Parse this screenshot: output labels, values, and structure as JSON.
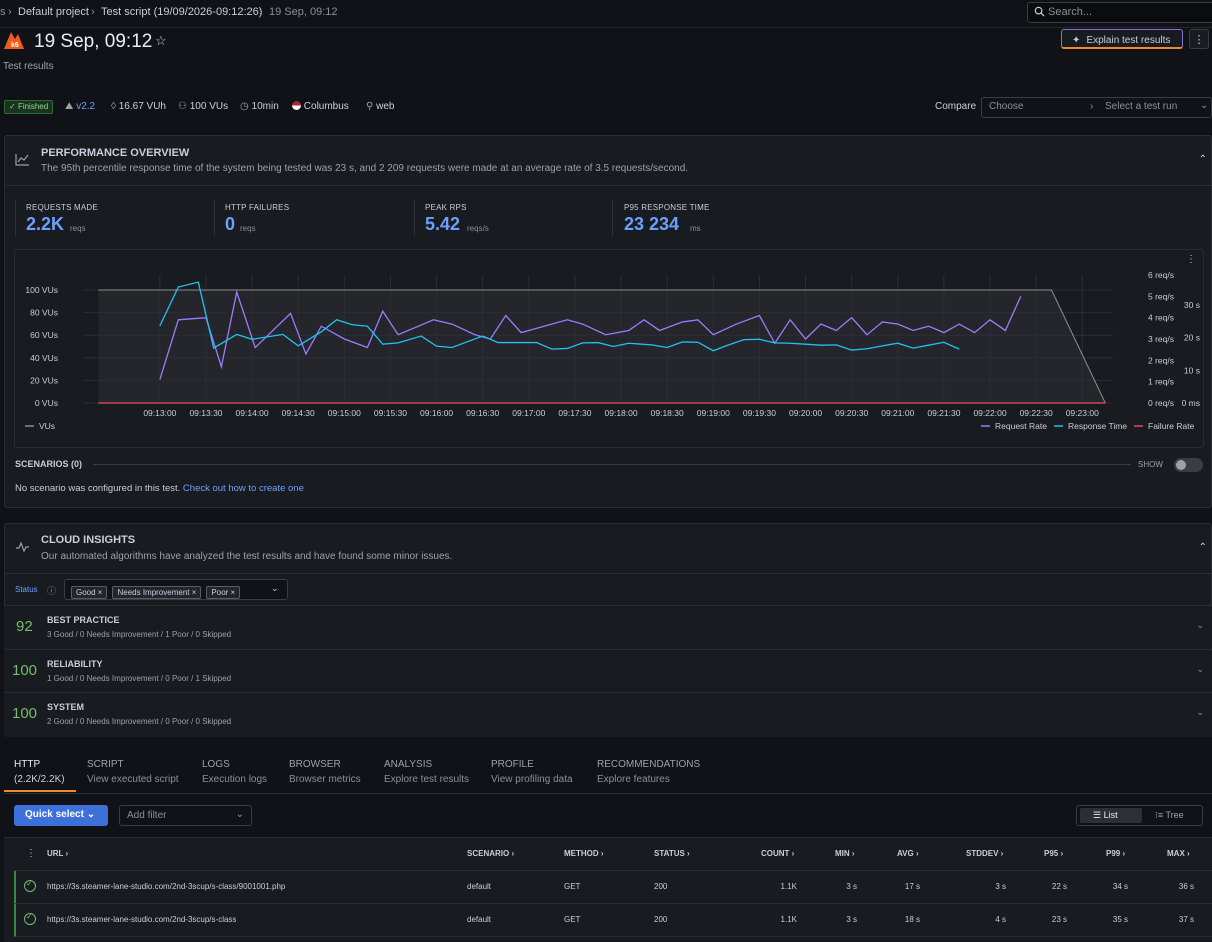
{
  "breadcrumb": {
    "first": "s",
    "project": "Default project",
    "script": "Test script (19/09/2026-09:12:26)",
    "run": "19 Sep, 09:12"
  },
  "search": {
    "placeholder": "Search..."
  },
  "header": {
    "title": "19 Sep, 09:12",
    "subtitle": "Test results",
    "explain_button": "Explain test results"
  },
  "meta": {
    "status": "Finished",
    "version": "v2.2",
    "vuh": "16.67 VUh",
    "vus": "100 VUs",
    "duration": "10min",
    "location": "Columbus",
    "source": "web"
  },
  "compare": {
    "label": "Compare",
    "choose_placeholder": "Choose",
    "run_placeholder": "Select a test run"
  },
  "performance": {
    "title": "PERFORMANCE OVERVIEW",
    "description": "The 95th percentile response time of the system being tested was 23 s, and 2 209 requests were made at an average rate of 3.5 requests/second.",
    "stats": [
      {
        "label": "REQUESTS MADE",
        "value": "2.2K",
        "unit": "reqs"
      },
      {
        "label": "HTTP FAILURES",
        "value": "0",
        "unit": "reqs"
      },
      {
        "label": "PEAK RPS",
        "value": "5.42",
        "unit": "reqs/s"
      },
      {
        "label": "P95 RESPONSE TIME",
        "value": "23 234",
        "unit": "ms"
      }
    ]
  },
  "chart_data": {
    "type": "line",
    "x": [
      "09:13:00",
      "09:13:30",
      "09:14:00",
      "09:14:30",
      "09:15:00",
      "09:15:30",
      "09:16:00",
      "09:16:30",
      "09:17:00",
      "09:17:30",
      "09:18:00",
      "09:18:30",
      "09:19:00",
      "09:19:30",
      "09:20:00",
      "09:20:30",
      "09:21:00",
      "09:21:30",
      "09:22:00",
      "09:22:30",
      "09:23:00"
    ],
    "y_left_ticks": [
      "100 VUs",
      "80 VUs",
      "60 VUs",
      "40 VUs",
      "20 VUs",
      "0 VUs"
    ],
    "y_rps_ticks": [
      "6 req/s",
      "5 req/s",
      "4 req/s",
      "3 req/s",
      "2 req/s",
      "1 req/s",
      "0 req/s"
    ],
    "y_rt_ticks": [
      "30 s",
      "20 s",
      "10 s",
      "0 ms"
    ],
    "xlim_seconds": [
      -50,
      620
    ],
    "series": [
      {
        "name": "VUs",
        "color": "#8e8e8e",
        "points": [
          [
            -40,
            100
          ],
          [
            580,
            100
          ],
          [
            615,
            0
          ]
        ]
      },
      {
        "name": "Request Rate",
        "color": "#9d7bfa",
        "axis": "rps",
        "points": [
          [
            0,
            1.1
          ],
          [
            12,
            3.9
          ],
          [
            30,
            4.0
          ],
          [
            40,
            1.7
          ],
          [
            50,
            5.2
          ],
          [
            62,
            2.6
          ],
          [
            85,
            4.2
          ],
          [
            95,
            2.3
          ],
          [
            105,
            3.6
          ],
          [
            120,
            3.0
          ],
          [
            135,
            2.6
          ],
          [
            145,
            4.3
          ],
          [
            155,
            3.2
          ],
          [
            178,
            3.9
          ],
          [
            190,
            3.7
          ],
          [
            205,
            3.2
          ],
          [
            215,
            3.0
          ],
          [
            225,
            4.1
          ],
          [
            235,
            3.3
          ],
          [
            265,
            3.9
          ],
          [
            275,
            3.7
          ],
          [
            290,
            3.2
          ],
          [
            305,
            3.4
          ],
          [
            315,
            3.9
          ],
          [
            325,
            3.4
          ],
          [
            340,
            3.8
          ],
          [
            350,
            3.9
          ],
          [
            360,
            3.2
          ],
          [
            375,
            3.7
          ],
          [
            390,
            4.1
          ],
          [
            400,
            2.8
          ],
          [
            410,
            3.9
          ],
          [
            420,
            3.0
          ],
          [
            430,
            3.7
          ],
          [
            440,
            3.4
          ],
          [
            450,
            4.0
          ],
          [
            460,
            3.2
          ],
          [
            470,
            3.8
          ],
          [
            480,
            3.7
          ],
          [
            490,
            3.4
          ],
          [
            500,
            3.6
          ],
          [
            510,
            3.3
          ],
          [
            520,
            3.7
          ],
          [
            530,
            3.3
          ],
          [
            540,
            3.9
          ],
          [
            550,
            3.4
          ],
          [
            560,
            5.0
          ]
        ]
      },
      {
        "name": "Response Time",
        "color": "#1fc3ee",
        "axis": "rt",
        "points": [
          [
            0,
            23.6
          ],
          [
            12,
            35.5
          ],
          [
            25,
            37.0
          ],
          [
            35,
            16.8
          ],
          [
            50,
            21.0
          ],
          [
            60,
            19.5
          ],
          [
            80,
            21.0
          ],
          [
            90,
            17.5
          ],
          [
            105,
            21.8
          ],
          [
            115,
            25.5
          ],
          [
            125,
            24.0
          ],
          [
            135,
            23.5
          ],
          [
            145,
            18.0
          ],
          [
            155,
            18.4
          ],
          [
            170,
            20.5
          ],
          [
            180,
            17.4
          ],
          [
            190,
            17.0
          ],
          [
            210,
            20.5
          ],
          [
            220,
            18.5
          ],
          [
            245,
            18.5
          ],
          [
            255,
            16.5
          ],
          [
            265,
            16.7
          ],
          [
            275,
            18.4
          ],
          [
            285,
            18.5
          ],
          [
            295,
            17.3
          ],
          [
            305,
            18.3
          ],
          [
            320,
            17.8
          ],
          [
            330,
            17.0
          ],
          [
            340,
            18.7
          ],
          [
            350,
            18.6
          ],
          [
            360,
            16.0
          ],
          [
            370,
            17.8
          ],
          [
            380,
            19.4
          ],
          [
            390,
            19.5
          ],
          [
            400,
            18.4
          ],
          [
            410,
            18.3
          ],
          [
            420,
            18.0
          ],
          [
            430,
            17.7
          ],
          [
            440,
            17.8
          ],
          [
            450,
            16.2
          ],
          [
            460,
            16.6
          ],
          [
            470,
            17.5
          ],
          [
            480,
            18.3
          ],
          [
            490,
            16.8
          ],
          [
            500,
            17.7
          ],
          [
            510,
            18.6
          ],
          [
            520,
            16.5
          ]
        ]
      },
      {
        "name": "Failure Rate",
        "color": "#f2495c",
        "axis": "rps",
        "points": [
          [
            -40,
            0
          ],
          [
            615,
            0
          ]
        ]
      }
    ],
    "legend_left": "VUs",
    "legend_right": [
      "Request Rate",
      "Response Time",
      "Failure Rate"
    ],
    "grid": true
  },
  "scenarios": {
    "title": "SCENARIOS (0)",
    "show_label": "SHOW",
    "empty_text": "No scenario was configured in this test.",
    "empty_link": "Check out how to create one"
  },
  "insights": {
    "title": "CLOUD INSIGHTS",
    "description": "Our automated algorithms have analyzed the test results and have found some minor issues.",
    "status_label": "Status",
    "filters": [
      "Good",
      "Needs Improvement",
      "Poor"
    ],
    "categories": [
      {
        "score": "92",
        "title": "BEST PRACTICE",
        "summary": "3 Good / 0 Needs Improvement / 1 Poor / 0 Skipped"
      },
      {
        "score": "100",
        "title": "RELIABILITY",
        "summary": "1 Good / 0 Needs Improvement / 0 Poor / 1 Skipped"
      },
      {
        "score": "100",
        "title": "SYSTEM",
        "summary": "2 Good / 0 Needs Improvement / 0 Poor / 0 Skipped"
      }
    ]
  },
  "tabs": [
    {
      "title": "HTTP",
      "sub": "(2.2K/2.2K)"
    },
    {
      "title": "SCRIPT",
      "sub": "View executed script"
    },
    {
      "title": "LOGS",
      "sub": "Execution logs"
    },
    {
      "title": "BROWSER",
      "sub": "Browser metrics"
    },
    {
      "title": "ANALYSIS",
      "sub": "Explore test results"
    },
    {
      "title": "PROFILE",
      "sub": "View profiling data"
    },
    {
      "title": "RECOMMENDATIONS",
      "sub": "Explore features"
    }
  ],
  "toolbar": {
    "quick_select": "Quick select",
    "filter_placeholder": "Add filter",
    "view_list": "List",
    "view_tree": "Tree"
  },
  "table": {
    "headers": [
      "URL",
      "SCENARIO",
      "METHOD",
      "STATUS",
      "COUNT",
      "MIN",
      "AVG",
      "STDDEV",
      "P95",
      "P99",
      "MAX"
    ],
    "rows": [
      {
        "url": "https://3s.steamer-lane-studio.com/2nd-3scup/s-class/9001001.php",
        "scenario": "default",
        "method": "GET",
        "status": "200",
        "count": "1.1K",
        "min": "3 s",
        "avg": "17 s",
        "stddev": "3 s",
        "p95": "22 s",
        "p99": "34 s",
        "max": "36 s"
      },
      {
        "url": "https://3s.steamer-lane-studio.com/2nd-3scup/s-class",
        "scenario": "default",
        "method": "GET",
        "status": "200",
        "count": "1.1K",
        "min": "3 s",
        "avg": "18 s",
        "stddev": "4 s",
        "p95": "23 s",
        "p99": "35 s",
        "max": "37 s"
      }
    ]
  },
  "colors": {
    "accent": "#6e9fff",
    "good": "#73bf69",
    "primary_button": "#3d71d9"
  }
}
